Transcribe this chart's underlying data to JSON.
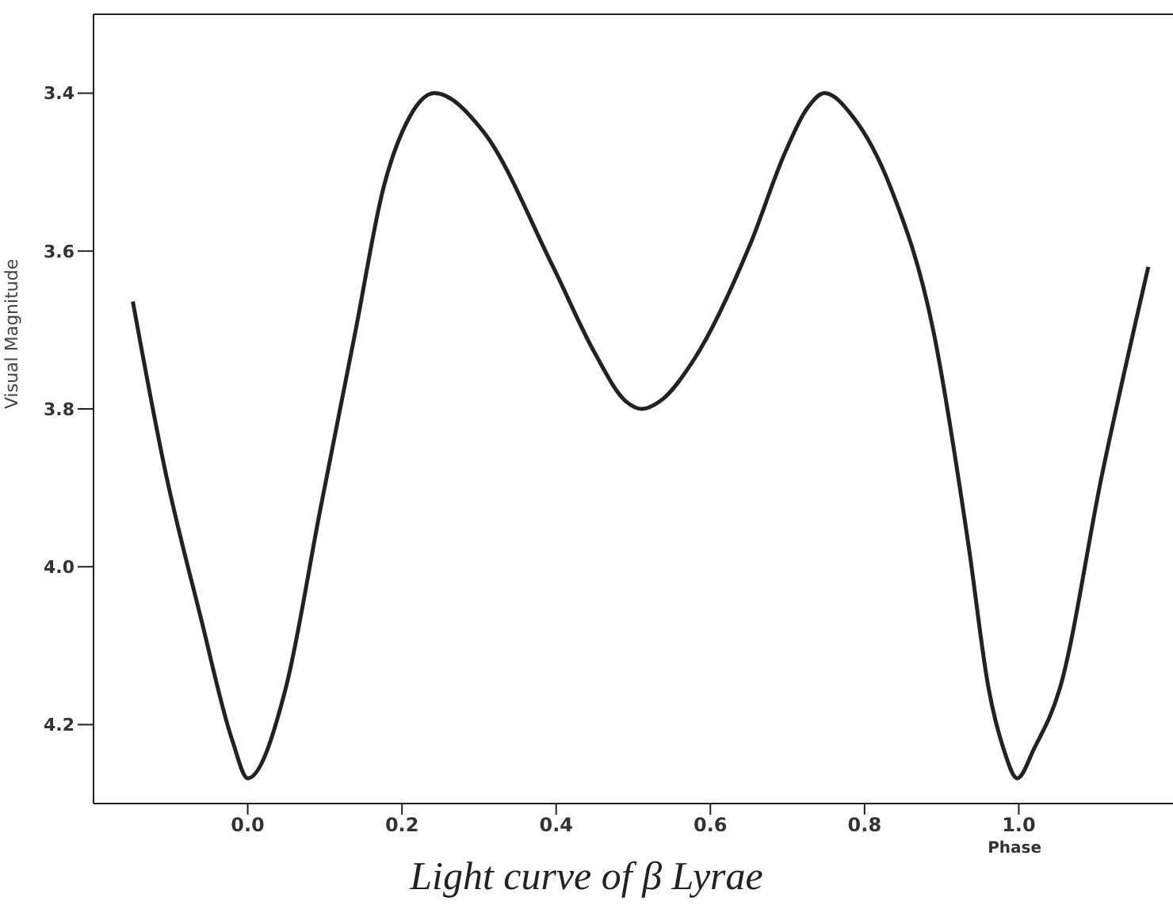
{
  "chart_data": {
    "type": "line",
    "title": "Light curve of β Lyrae",
    "xlabel": "Phase",
    "ylabel": "Visual Magnitude",
    "series": [
      {
        "color": "#222222",
        "x": [
          -0.149,
          -0.106,
          -0.061,
          -0.02,
          0.0,
          0.049,
          0.094,
          0.14,
          0.176,
          0.21,
          0.242,
          0.305,
          0.396,
          0.45,
          0.49,
          0.511,
          0.535,
          0.579,
          0.651,
          0.697,
          0.725,
          0.748,
          0.785,
          0.834,
          0.889,
          0.935,
          0.961,
          0.98,
          0.998,
          1.02,
          1.053,
          1.108,
          1.168
        ],
        "values": [
          3.664,
          3.883,
          4.064,
          4.22,
          4.268,
          4.155,
          3.928,
          3.7,
          3.52,
          3.43,
          3.4,
          3.448,
          3.62,
          3.729,
          3.79,
          3.8,
          3.79,
          3.737,
          3.593,
          3.475,
          3.42,
          3.4,
          3.43,
          3.52,
          3.7,
          3.974,
          4.155,
          4.23,
          4.268,
          4.23,
          4.155,
          3.883,
          3.62
        ]
      }
    ],
    "xlim": [
      -0.2,
      1.2
    ],
    "xticks": [
      {
        "value": 0,
        "label": "0.0"
      },
      0.2,
      0.4,
      0.6,
      0.8,
      {
        "value": 1.0,
        "label": "1.0"
      }
    ],
    "ylim": [
      4.3,
      3.3
    ],
    "yticks": [
      3.4,
      3.6,
      3.8,
      {
        "value": 4.0,
        "label": "4.0"
      },
      4.2
    ],
    "grid": false,
    "marker": "none",
    "line_style": "solid"
  }
}
